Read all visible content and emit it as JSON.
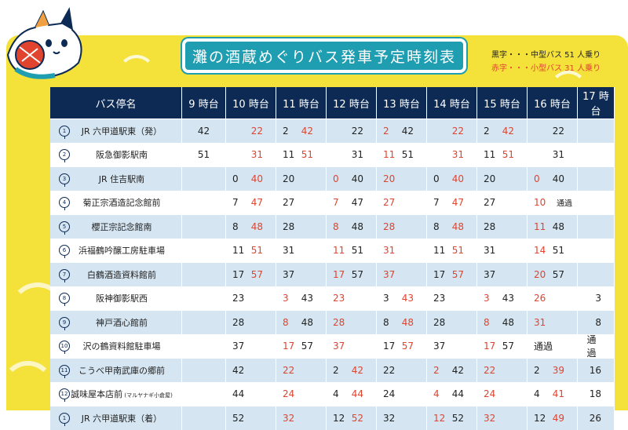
{
  "title": "灘の酒蔵めぐりバス発車予定時刻表",
  "legend": {
    "black": "黒字・・・中型バス 51 人乗り",
    "red": "赤字・・・小型バス 31 人乗り"
  },
  "colors": {
    "header": "#0d2a55",
    "red": "#e0432e",
    "accent": "#1f9eb1",
    "background": "#f4e13a",
    "row_alt": "#d5e6f2"
  },
  "table": {
    "headers": [
      "バス停名",
      "9 時台",
      "10 時台",
      "11 時台",
      "12 時台",
      "13 時台",
      "14 時台",
      "15 時台",
      "16 時台",
      "17 時台"
    ],
    "rows": [
      {
        "no": "1",
        "name": "JR 六甲道駅東（発）",
        "cells": [
          [
            {
              "t": "42",
              "c": "k",
              "p": "c"
            }
          ],
          [
            {
              "t": "22",
              "c": "r",
              "p": "r"
            }
          ],
          [
            {
              "t": "2",
              "c": "k",
              "p": "l"
            },
            {
              "t": "42",
              "c": "r",
              "p": "r"
            }
          ],
          [
            {
              "t": "22",
              "c": "k",
              "p": "r"
            }
          ],
          [
            {
              "t": "2",
              "c": "r",
              "p": "l"
            },
            {
              "t": "42",
              "c": "k",
              "p": "r"
            }
          ],
          [
            {
              "t": "22",
              "c": "r",
              "p": "r"
            }
          ],
          [
            {
              "t": "2",
              "c": "k",
              "p": "l"
            },
            {
              "t": "42",
              "c": "r",
              "p": "r"
            }
          ],
          [
            {
              "t": "22",
              "c": "k",
              "p": "r"
            }
          ],
          []
        ]
      },
      {
        "no": "2",
        "name": "阪急御影駅南",
        "cells": [
          [
            {
              "t": "51",
              "c": "k",
              "p": "c"
            }
          ],
          [
            {
              "t": "31",
              "c": "r",
              "p": "r"
            }
          ],
          [
            {
              "t": "11",
              "c": "k",
              "p": "l"
            },
            {
              "t": "51",
              "c": "r",
              "p": "r"
            }
          ],
          [
            {
              "t": "31",
              "c": "k",
              "p": "r"
            }
          ],
          [
            {
              "t": "11",
              "c": "r",
              "p": "l"
            },
            {
              "t": "51",
              "c": "k",
              "p": "r"
            }
          ],
          [
            {
              "t": "31",
              "c": "r",
              "p": "r"
            }
          ],
          [
            {
              "t": "11",
              "c": "k",
              "p": "l"
            },
            {
              "t": "51",
              "c": "r",
              "p": "r"
            }
          ],
          [
            {
              "t": "31",
              "c": "k",
              "p": "r"
            }
          ],
          []
        ]
      },
      {
        "no": "3",
        "name": "JR 住吉駅南",
        "cells": [
          [],
          [
            {
              "t": "0",
              "c": "k",
              "p": "l"
            },
            {
              "t": "40",
              "c": "r",
              "p": "r"
            }
          ],
          [
            {
              "t": "20",
              "c": "k",
              "p": "l"
            }
          ],
          [
            {
              "t": "0",
              "c": "r",
              "p": "l"
            },
            {
              "t": "40",
              "c": "k",
              "p": "r"
            }
          ],
          [
            {
              "t": "20",
              "c": "r",
              "p": "l"
            }
          ],
          [
            {
              "t": "0",
              "c": "k",
              "p": "l"
            },
            {
              "t": "40",
              "c": "r",
              "p": "r"
            }
          ],
          [
            {
              "t": "20",
              "c": "k",
              "p": "l"
            }
          ],
          [
            {
              "t": "0",
              "c": "r",
              "p": "l"
            },
            {
              "t": "40",
              "c": "k",
              "p": "r"
            }
          ],
          []
        ]
      },
      {
        "no": "4",
        "name": "菊正宗酒造記念館前",
        "cells": [
          [],
          [
            {
              "t": "7",
              "c": "k",
              "p": "l"
            },
            {
              "t": "47",
              "c": "r",
              "p": "r"
            }
          ],
          [
            {
              "t": "27",
              "c": "k",
              "p": "l"
            }
          ],
          [
            {
              "t": "7",
              "c": "r",
              "p": "l"
            },
            {
              "t": "47",
              "c": "k",
              "p": "r"
            }
          ],
          [
            {
              "t": "27",
              "c": "r",
              "p": "l"
            }
          ],
          [
            {
              "t": "7",
              "c": "k",
              "p": "l"
            },
            {
              "t": "47",
              "c": "r",
              "p": "r"
            }
          ],
          [
            {
              "t": "27",
              "c": "k",
              "p": "l"
            }
          ],
          [
            {
              "t": "10",
              "c": "r",
              "p": "l"
            },
            {
              "t": "通過",
              "c": "k",
              "p": "rs"
            }
          ],
          []
        ]
      },
      {
        "no": "5",
        "name": "櫻正宗記念館南",
        "cells": [
          [],
          [
            {
              "t": "8",
              "c": "k",
              "p": "l"
            },
            {
              "t": "48",
              "c": "r",
              "p": "r"
            }
          ],
          [
            {
              "t": "28",
              "c": "k",
              "p": "l"
            }
          ],
          [
            {
              "t": "8",
              "c": "r",
              "p": "l"
            },
            {
              "t": "48",
              "c": "k",
              "p": "r"
            }
          ],
          [
            {
              "t": "28",
              "c": "r",
              "p": "l"
            }
          ],
          [
            {
              "t": "8",
              "c": "k",
              "p": "l"
            },
            {
              "t": "48",
              "c": "r",
              "p": "r"
            }
          ],
          [
            {
              "t": "28",
              "c": "k",
              "p": "l"
            }
          ],
          [
            {
              "t": "11",
              "c": "r",
              "p": "l"
            },
            {
              "t": "48",
              "c": "k",
              "p": "r"
            }
          ],
          []
        ]
      },
      {
        "no": "6",
        "name": "浜福鶴吟醸工房駐車場",
        "cells": [
          [],
          [
            {
              "t": "11",
              "c": "k",
              "p": "l"
            },
            {
              "t": "51",
              "c": "r",
              "p": "r"
            }
          ],
          [
            {
              "t": "31",
              "c": "k",
              "p": "l"
            }
          ],
          [
            {
              "t": "11",
              "c": "r",
              "p": "l"
            },
            {
              "t": "51",
              "c": "k",
              "p": "r"
            }
          ],
          [
            {
              "t": "31",
              "c": "r",
              "p": "l"
            }
          ],
          [
            {
              "t": "11",
              "c": "k",
              "p": "l"
            },
            {
              "t": "51",
              "c": "r",
              "p": "r"
            }
          ],
          [
            {
              "t": "31",
              "c": "k",
              "p": "l"
            }
          ],
          [
            {
              "t": "14",
              "c": "r",
              "p": "l"
            },
            {
              "t": "51",
              "c": "k",
              "p": "r"
            }
          ],
          []
        ]
      },
      {
        "no": "7",
        "name": "白鶴酒造資料館前",
        "cells": [
          [],
          [
            {
              "t": "17",
              "c": "k",
              "p": "l"
            },
            {
              "t": "57",
              "c": "r",
              "p": "r"
            }
          ],
          [
            {
              "t": "37",
              "c": "k",
              "p": "l"
            }
          ],
          [
            {
              "t": "17",
              "c": "r",
              "p": "l"
            },
            {
              "t": "57",
              "c": "k",
              "p": "r"
            }
          ],
          [
            {
              "t": "37",
              "c": "r",
              "p": "l"
            }
          ],
          [
            {
              "t": "17",
              "c": "k",
              "p": "l"
            },
            {
              "t": "57",
              "c": "r",
              "p": "r"
            }
          ],
          [
            {
              "t": "37",
              "c": "k",
              "p": "l"
            }
          ],
          [
            {
              "t": "20",
              "c": "r",
              "p": "l"
            },
            {
              "t": "57",
              "c": "k",
              "p": "r"
            }
          ],
          []
        ]
      },
      {
        "no": "8",
        "name": "阪神御影駅西",
        "cells": [
          [],
          [
            {
              "t": "23",
              "c": "k",
              "p": "l"
            }
          ],
          [
            {
              "t": "3",
              "c": "r",
              "p": "l"
            },
            {
              "t": "43",
              "c": "k",
              "p": "r"
            }
          ],
          [
            {
              "t": "23",
              "c": "r",
              "p": "l"
            }
          ],
          [
            {
              "t": "3",
              "c": "k",
              "p": "l"
            },
            {
              "t": "43",
              "c": "r",
              "p": "r"
            }
          ],
          [
            {
              "t": "23",
              "c": "k",
              "p": "l"
            }
          ],
          [
            {
              "t": "3",
              "c": "r",
              "p": "l"
            },
            {
              "t": "43",
              "c": "k",
              "p": "r"
            }
          ],
          [
            {
              "t": "26",
              "c": "r",
              "p": "l"
            }
          ],
          [
            {
              "t": "3",
              "c": "k",
              "p": "r"
            }
          ]
        ]
      },
      {
        "no": "9",
        "name": "神戸酒心館前",
        "cells": [
          [],
          [
            {
              "t": "28",
              "c": "k",
              "p": "l"
            }
          ],
          [
            {
              "t": "8",
              "c": "r",
              "p": "l"
            },
            {
              "t": "48",
              "c": "k",
              "p": "r"
            }
          ],
          [
            {
              "t": "28",
              "c": "r",
              "p": "l"
            }
          ],
          [
            {
              "t": "8",
              "c": "k",
              "p": "l"
            },
            {
              "t": "48",
              "c": "r",
              "p": "r"
            }
          ],
          [
            {
              "t": "28",
              "c": "k",
              "p": "l"
            }
          ],
          [
            {
              "t": "8",
              "c": "r",
              "p": "l"
            },
            {
              "t": "48",
              "c": "k",
              "p": "r"
            }
          ],
          [
            {
              "t": "31",
              "c": "r",
              "p": "l"
            }
          ],
          [
            {
              "t": "8",
              "c": "k",
              "p": "r"
            }
          ]
        ]
      },
      {
        "no": "10",
        "name": "沢の鶴資料館駐車場",
        "cells": [
          [],
          [
            {
              "t": "37",
              "c": "k",
              "p": "l"
            }
          ],
          [
            {
              "t": "17",
              "c": "r",
              "p": "l"
            },
            {
              "t": "57",
              "c": "k",
              "p": "r"
            }
          ],
          [
            {
              "t": "37",
              "c": "r",
              "p": "l"
            }
          ],
          [
            {
              "t": "17",
              "c": "k",
              "p": "l"
            },
            {
              "t": "57",
              "c": "r",
              "p": "r"
            }
          ],
          [
            {
              "t": "37",
              "c": "k",
              "p": "l"
            }
          ],
          [
            {
              "t": "17",
              "c": "r",
              "p": "l"
            },
            {
              "t": "57",
              "c": "k",
              "p": "r"
            }
          ],
          [
            {
              "t": "通過",
              "c": "k",
              "p": "l"
            }
          ],
          [
            {
              "t": "通過",
              "c": "k",
              "p": "c"
            }
          ]
        ]
      },
      {
        "no": "11",
        "name": "こうべ甲南武庫の郷前",
        "cells": [
          [],
          [
            {
              "t": "42",
              "c": "k",
              "p": "l"
            }
          ],
          [
            {
              "t": "22",
              "c": "r",
              "p": "l"
            }
          ],
          [
            {
              "t": "2",
              "c": "k",
              "p": "l"
            },
            {
              "t": "42",
              "c": "r",
              "p": "r"
            }
          ],
          [
            {
              "t": "22",
              "c": "k",
              "p": "l"
            }
          ],
          [
            {
              "t": "2",
              "c": "r",
              "p": "l"
            },
            {
              "t": "42",
              "c": "k",
              "p": "r"
            }
          ],
          [
            {
              "t": "22",
              "c": "r",
              "p": "l"
            }
          ],
          [
            {
              "t": "2",
              "c": "k",
              "p": "l"
            },
            {
              "t": "39",
              "c": "r",
              "p": "r"
            }
          ],
          [
            {
              "t": "16",
              "c": "k",
              "p": "r"
            }
          ]
        ]
      },
      {
        "no": "12",
        "name": "誠味屋本店前",
        "small": "(マルヤナギ小倉屋)",
        "cells": [
          [],
          [
            {
              "t": "44",
              "c": "k",
              "p": "l"
            }
          ],
          [
            {
              "t": "24",
              "c": "r",
              "p": "l"
            }
          ],
          [
            {
              "t": "4",
              "c": "k",
              "p": "l"
            },
            {
              "t": "44",
              "c": "r",
              "p": "r"
            }
          ],
          [
            {
              "t": "24",
              "c": "k",
              "p": "l"
            }
          ],
          [
            {
              "t": "4",
              "c": "r",
              "p": "l"
            },
            {
              "t": "44",
              "c": "k",
              "p": "r"
            }
          ],
          [
            {
              "t": "24",
              "c": "r",
              "p": "l"
            }
          ],
          [
            {
              "t": "4",
              "c": "k",
              "p": "l"
            },
            {
              "t": "41",
              "c": "r",
              "p": "r"
            }
          ],
          [
            {
              "t": "18",
              "c": "k",
              "p": "r"
            }
          ]
        ]
      },
      {
        "no": "1",
        "name": "JR 六甲道駅東（着）",
        "cells": [
          [],
          [
            {
              "t": "52",
              "c": "k",
              "p": "l"
            }
          ],
          [
            {
              "t": "32",
              "c": "r",
              "p": "l"
            }
          ],
          [
            {
              "t": "12",
              "c": "k",
              "p": "l"
            },
            {
              "t": "52",
              "c": "r",
              "p": "r"
            }
          ],
          [
            {
              "t": "32",
              "c": "k",
              "p": "l"
            }
          ],
          [
            {
              "t": "12",
              "c": "r",
              "p": "l"
            },
            {
              "t": "52",
              "c": "k",
              "p": "r"
            }
          ],
          [
            {
              "t": "32",
              "c": "r",
              "p": "l"
            }
          ],
          [
            {
              "t": "12",
              "c": "k",
              "p": "l"
            },
            {
              "t": "49",
              "c": "r",
              "p": "r"
            }
          ],
          [
            {
              "t": "26",
              "c": "k",
              "p": "r"
            }
          ]
        ]
      }
    ]
  }
}
